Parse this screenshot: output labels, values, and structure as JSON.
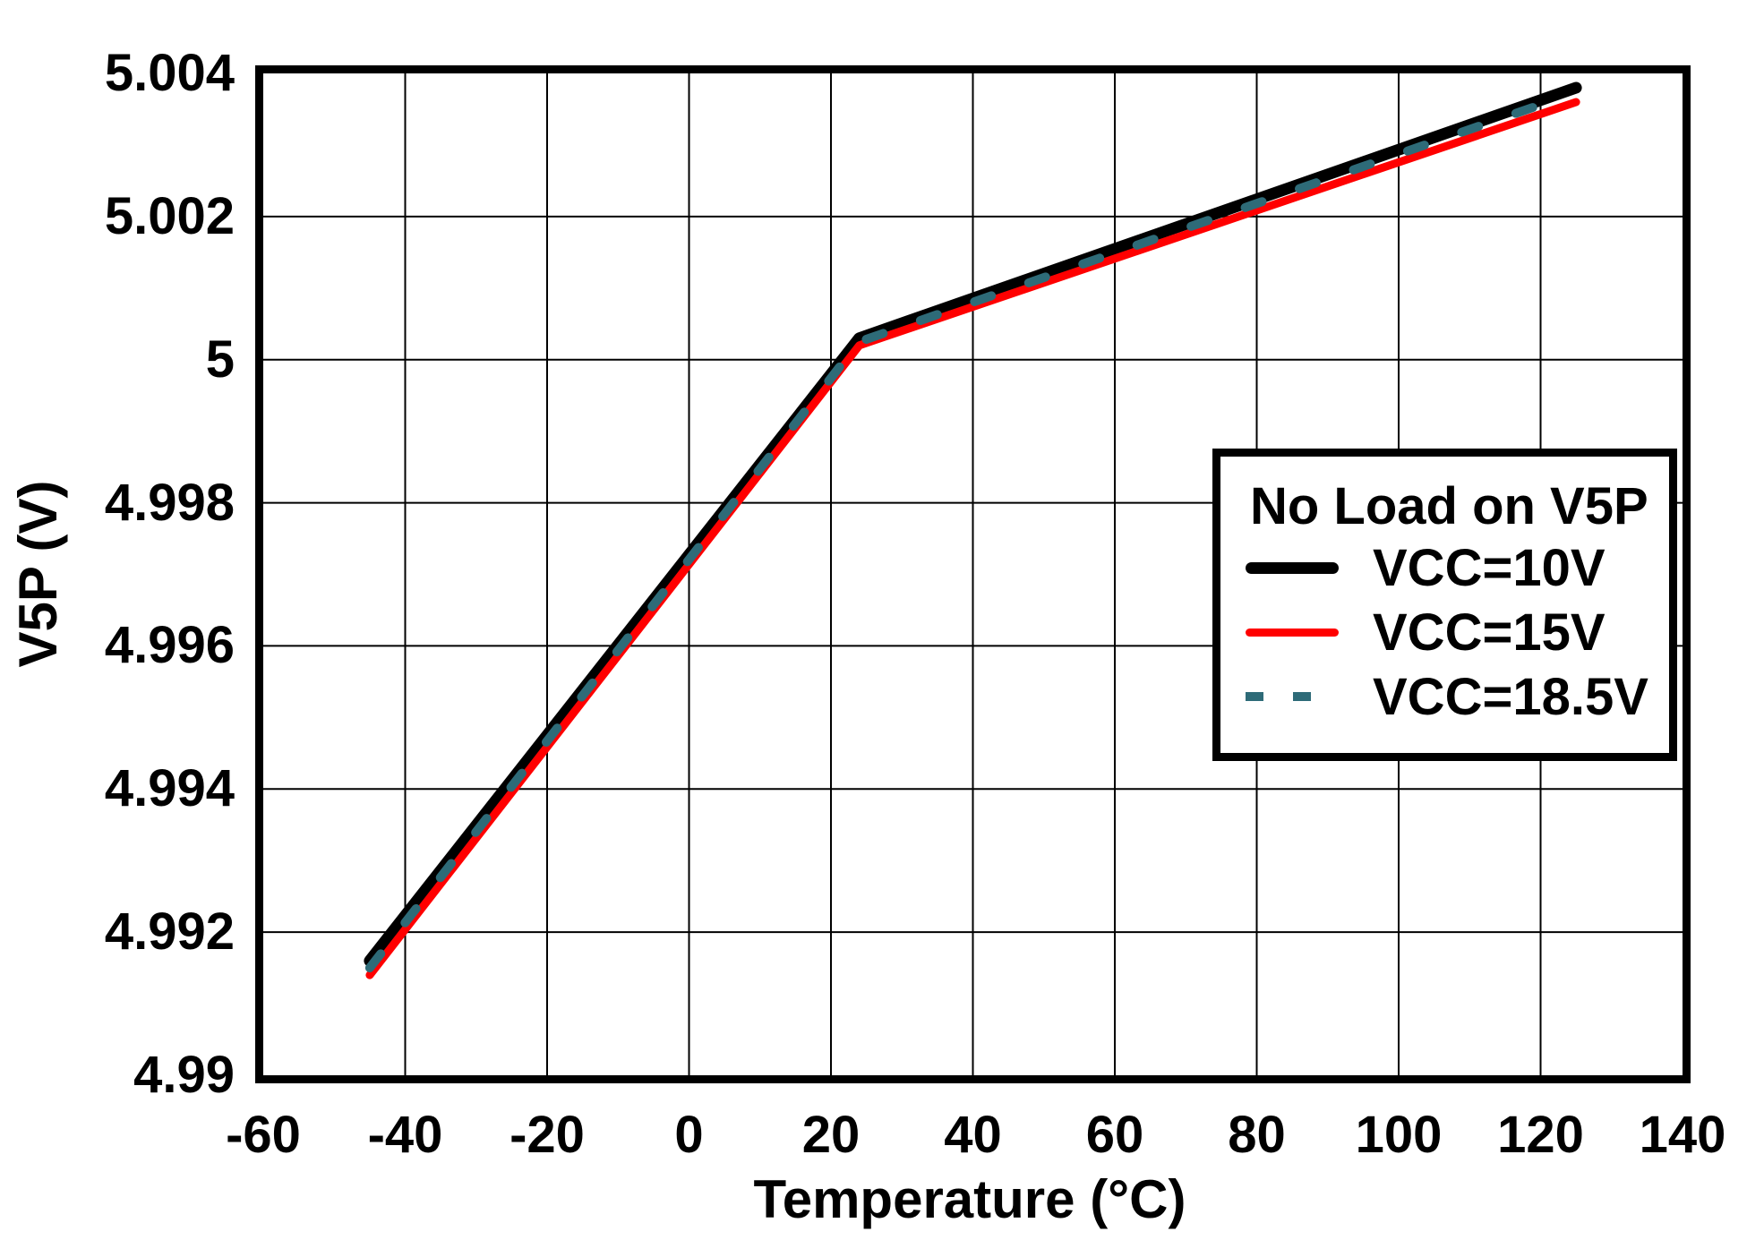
{
  "figure": {
    "background": "#ffffff",
    "plot_border_color": "#000000",
    "grid_color": "#000000",
    "text_color": "#000000"
  },
  "chart_data": {
    "type": "line",
    "title": "",
    "xlabel": "Temperature (°C)",
    "ylabel": "V5P (V)",
    "xlim": [
      -60,
      140
    ],
    "ylim": [
      4.99,
      5.004
    ],
    "grid": true,
    "x_ticks": [
      -60,
      -40,
      -20,
      0,
      20,
      40,
      60,
      80,
      100,
      120,
      140
    ],
    "x_tick_labels": [
      "-60",
      "-40",
      "-20",
      "0",
      "20",
      "40",
      "60",
      "80",
      "100",
      "120",
      "140"
    ],
    "y_ticks": [
      5.004,
      5.002,
      5.0,
      4.998,
      4.996,
      4.994,
      4.992,
      4.99
    ],
    "y_tick_labels": [
      "5.004",
      "5.002",
      "5",
      "4.998",
      "4.996",
      "4.994",
      "4.992",
      "4.99"
    ],
    "legend": {
      "title": "No Load on V5P",
      "position": "middle-right",
      "items": [
        {
          "label": "VCC=10V",
          "color": "#000000",
          "style": "solid",
          "line_width": 13
        },
        {
          "label": "VCC=15V",
          "color": "#ff0000",
          "style": "solid",
          "line_width": 9
        },
        {
          "label": "VCC=18.5V",
          "color": "#2e6b78",
          "style": "dashed",
          "line_width": 10
        }
      ]
    },
    "series": [
      {
        "name": "VCC=10V",
        "color": "#000000",
        "style": "solid",
        "width": 13,
        "points": [
          [
            -45,
            4.9916
          ],
          [
            24,
            5.0003
          ],
          [
            125,
            5.0038
          ]
        ]
      },
      {
        "name": "VCC=15V",
        "color": "#ff0000",
        "style": "solid",
        "width": 9,
        "points": [
          [
            -45,
            4.9914
          ],
          [
            24,
            5.0002
          ],
          [
            125,
            5.0036
          ]
        ]
      },
      {
        "name": "VCC=18.5V",
        "color": "#2e6b78",
        "style": "dashed",
        "width": 10,
        "dash": [
          20,
          44
        ],
        "points": [
          [
            -45,
            4.9915
          ],
          [
            24,
            5.00025
          ],
          [
            124,
            5.0037
          ]
        ]
      }
    ]
  }
}
